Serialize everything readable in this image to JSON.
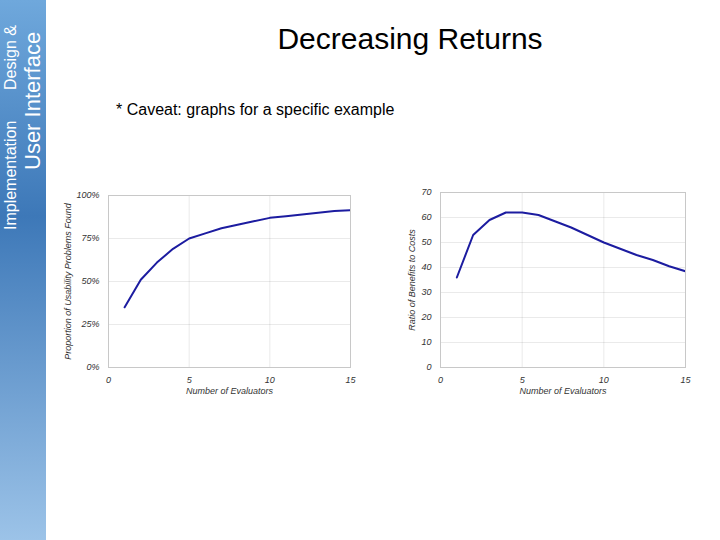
{
  "title": "Decreasing Returns",
  "note": "* Caveat: graphs for a specific example",
  "sidebar": [
    "User Interface",
    "Design &",
    "Implementation"
  ],
  "chart_data": [
    {
      "type": "line",
      "x_label": "Number of Evaluators",
      "y_label": "Proportion of Usability Problems Found",
      "x": [
        1,
        2,
        3,
        4,
        5,
        6,
        7,
        8,
        9,
        10,
        11,
        12,
        13,
        14,
        15
      ],
      "values": [
        35,
        51,
        61,
        69,
        75,
        78,
        81,
        83,
        85,
        87,
        88,
        89,
        90,
        91,
        91.5
      ],
      "color": "#1c1ca0",
      "xlim": [
        0,
        15
      ],
      "xticks": [
        0,
        5,
        10,
        15
      ],
      "ylim": [
        0,
        100
      ],
      "yticks": [
        {
          "value": 0,
          "label": "0%"
        },
        {
          "value": 25,
          "label": "25%"
        },
        {
          "value": 50,
          "label": "50%"
        },
        {
          "value": 75,
          "label": "75%"
        },
        {
          "value": 100,
          "label": "100%"
        }
      ],
      "grid": true
    },
    {
      "type": "line",
      "x_label": "Number of Evaluators",
      "y_label": "Ratio of Benefits to Costs",
      "x": [
        1,
        2,
        3,
        4,
        5,
        6,
        7,
        8,
        9,
        10,
        11,
        12,
        13,
        14,
        15
      ],
      "values": [
        36,
        53,
        59,
        62,
        62,
        61,
        58.5,
        56,
        53,
        50,
        47.5,
        45,
        43,
        40.5,
        38.5
      ],
      "color": "#1c1ca0",
      "xlim": [
        0,
        15
      ],
      "xticks": [
        0,
        5,
        10,
        15
      ],
      "ylim": [
        0,
        70
      ],
      "yticks": [
        0,
        10,
        20,
        30,
        40,
        50,
        60,
        70
      ],
      "grid": true
    }
  ]
}
